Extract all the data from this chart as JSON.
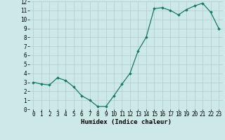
{
  "x": [
    0,
    1,
    2,
    3,
    4,
    5,
    6,
    7,
    8,
    9,
    10,
    11,
    12,
    13,
    14,
    15,
    16,
    17,
    18,
    19,
    20,
    21,
    22,
    23
  ],
  "y": [
    3.0,
    2.8,
    2.7,
    3.5,
    3.2,
    2.5,
    1.5,
    1.0,
    0.3,
    0.3,
    1.5,
    2.8,
    4.0,
    6.5,
    8.0,
    11.2,
    11.3,
    11.0,
    10.5,
    11.1,
    11.5,
    11.8,
    10.8,
    9.0
  ],
  "xlabel": "Humidex (Indice chaleur)",
  "xlim": [
    -0.5,
    23.5
  ],
  "ylim": [
    0,
    12
  ],
  "xticks": [
    0,
    1,
    2,
    3,
    4,
    5,
    6,
    7,
    8,
    9,
    10,
    11,
    12,
    13,
    14,
    15,
    16,
    17,
    18,
    19,
    20,
    21,
    22,
    23
  ],
  "yticks": [
    0,
    1,
    2,
    3,
    4,
    5,
    6,
    7,
    8,
    9,
    10,
    11,
    12
  ],
  "line_color": "#1a7a5e",
  "marker": "D",
  "marker_size": 1.8,
  "bg_color": "#cce8e8",
  "grid_color": "#b0cccc",
  "xlabel_fontsize": 6.5,
  "tick_fontsize": 5.5,
  "linewidth": 0.9
}
